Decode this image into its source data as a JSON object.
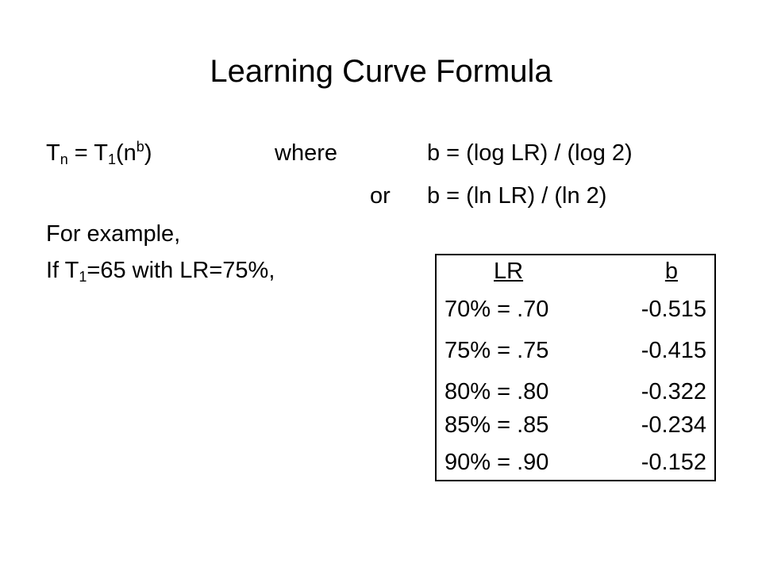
{
  "title": "Learning Curve Formula",
  "formula": {
    "lhs_T": "T",
    "lhs_sub": "n",
    "eq": " = T",
    "rhs_sub": "1",
    "paren_open": "(n",
    "exp": "b",
    "paren_close": ")",
    "where": "where",
    "b_log": "b = (log LR) / (log 2)",
    "or": "or",
    "b_ln": "b = (ln LR) / (ln 2)"
  },
  "example": {
    "label": "For example,",
    "if_prefix": "If T",
    "if_sub": "1",
    "if_rest": "=65 with LR=75%,"
  },
  "table": {
    "headers": {
      "lr": "LR",
      "b": "b"
    },
    "rows": [
      {
        "lr": "70% = .70",
        "b": "-0.515"
      },
      {
        "lr": "75% = .75",
        "b": "-0.415"
      },
      {
        "lr": "80% = .80",
        "b": "-0.322"
      },
      {
        "lr": "85% = .85",
        "b": "-0.234"
      },
      {
        "lr": "90% = .90",
        "b": "-0.152"
      }
    ]
  }
}
